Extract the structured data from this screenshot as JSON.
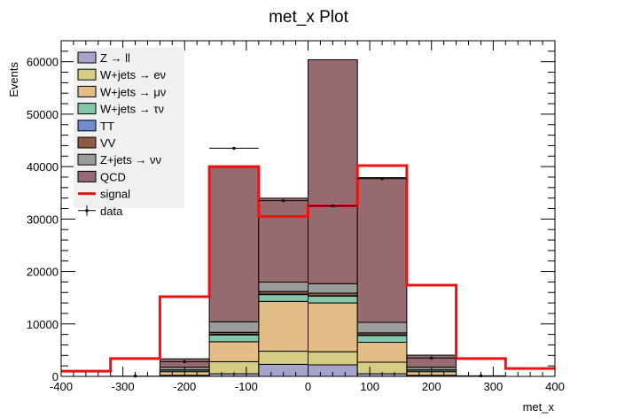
{
  "chart_data": {
    "type": "stacked-histogram",
    "title": "met_x Plot",
    "xlabel": "met_x",
    "ylabel": "Events",
    "xlim": [
      -400,
      400
    ],
    "ylim": [
      0,
      64000
    ],
    "x_ticks": [
      -400,
      -300,
      -200,
      -100,
      0,
      100,
      200,
      300,
      400
    ],
    "y_ticks": [
      0,
      10000,
      20000,
      30000,
      40000,
      50000,
      60000
    ],
    "bin_edges": [
      -400,
      -320,
      -240,
      -160,
      -80,
      0,
      80,
      160,
      240,
      320,
      400
    ],
    "grid": false,
    "legend_position": "top-left",
    "stack": [
      {
        "name": "Z → ll",
        "color": "#a7a4c9",
        "values": [
          0,
          0,
          50,
          500,
          2300,
          2200,
          500,
          50,
          0,
          0
        ]
      },
      {
        "name": "W+jets → eν",
        "color": "#d5cd84",
        "values": [
          0,
          0,
          150,
          2300,
          2500,
          2500,
          2200,
          150,
          0,
          0
        ]
      },
      {
        "name": "W+jets → μν",
        "color": "#e2bd86",
        "values": [
          0,
          0,
          700,
          3800,
          9500,
          9300,
          3800,
          700,
          0,
          0
        ]
      },
      {
        "name": "W+jets → τν",
        "color": "#84c6a7",
        "values": [
          0,
          0,
          300,
          1300,
          1300,
          1300,
          1300,
          300,
          0,
          0
        ]
      },
      {
        "name": "TT",
        "color": "#6d8fd2",
        "values": [
          0,
          0,
          20,
          100,
          80,
          80,
          100,
          20,
          0,
          0
        ]
      },
      {
        "name": "VV",
        "color": "#8c5a46",
        "values": [
          0,
          0,
          30,
          400,
          500,
          500,
          400,
          30,
          0,
          0
        ]
      },
      {
        "name": "Z+jets → νν",
        "color": "#9c9c9c",
        "values": [
          0,
          0,
          500,
          2000,
          1800,
          1800,
          2000,
          500,
          0,
          0
        ]
      },
      {
        "name": "QCD",
        "color": "#976a70",
        "values": [
          0,
          0,
          1600,
          29500,
          16000,
          42700,
          27600,
          2300,
          0,
          0
        ]
      }
    ],
    "signal": {
      "name": "signal",
      "color": "#ee1111",
      "values": [
        1000,
        3400,
        15200,
        40000,
        30500,
        32500,
        40200,
        17400,
        3400,
        1500
      ]
    },
    "data": {
      "name": "data",
      "values": [
        0,
        50,
        2800,
        43500,
        33500,
        32500,
        37700,
        3500,
        100,
        0
      ]
    }
  }
}
